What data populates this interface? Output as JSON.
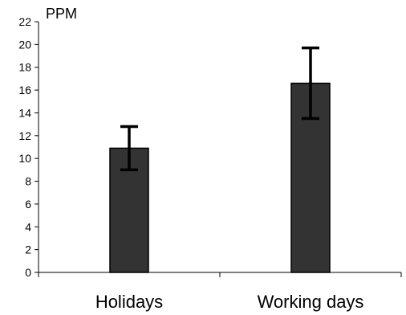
{
  "chart_data": {
    "type": "bar",
    "title": "",
    "xlabel": "",
    "ylabel": "PPM",
    "ylim": [
      0,
      22
    ],
    "yticks": [
      0,
      2,
      4,
      6,
      8,
      10,
      12,
      14,
      16,
      18,
      20,
      22
    ],
    "categories": [
      "Holidays",
      "Working days"
    ],
    "values": [
      10.9,
      16.6
    ],
    "error": [
      1.9,
      3.1
    ],
    "bar_color": "#333333",
    "grid": false,
    "legend": "none"
  }
}
